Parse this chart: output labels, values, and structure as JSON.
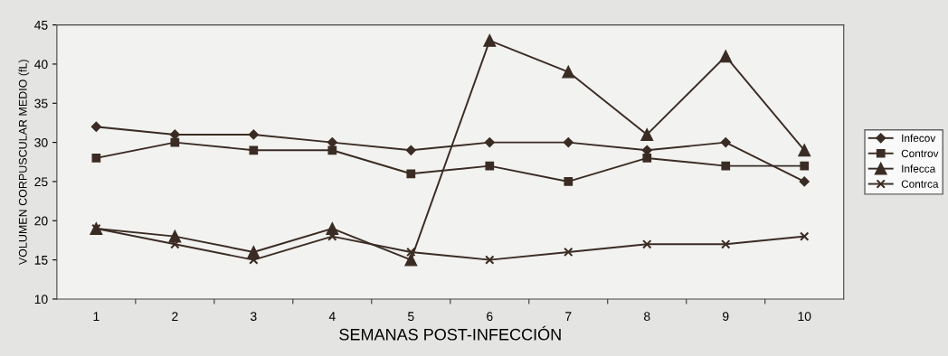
{
  "chart_data": {
    "type": "line",
    "xlabel": "SEMANAS POST-INFECCIÓN",
    "ylabel": "VOLUMEN CORPUSCULAR MEDIO (fL)",
    "categories": [
      "1",
      "2",
      "3",
      "4",
      "5",
      "6",
      "7",
      "8",
      "9",
      "10"
    ],
    "ylim": [
      10,
      45
    ],
    "yticks": [
      10,
      15,
      20,
      25,
      30,
      35,
      40,
      45
    ],
    "grid": false,
    "legend": "right",
    "line_style": "solid",
    "series": [
      {
        "name": "Infecov",
        "color": "#3a2c24",
        "marker": "diamond",
        "values": [
          32,
          31,
          31,
          30,
          29,
          30,
          30,
          29,
          30,
          25
        ]
      },
      {
        "name": "Controv",
        "color": "#3a2c24",
        "marker": "square",
        "values": [
          28,
          30,
          29,
          29,
          26,
          27,
          25,
          28,
          27,
          27
        ]
      },
      {
        "name": "Infecca",
        "color": "#3a2c24",
        "marker": "triangle",
        "values": [
          19,
          18,
          16,
          19,
          15,
          43,
          39,
          31,
          41,
          29
        ]
      },
      {
        "name": "Contrca",
        "color": "#3a2c24",
        "marker": "cross",
        "values": [
          19,
          17,
          15,
          18,
          16,
          15,
          16,
          17,
          17,
          18
        ]
      }
    ]
  }
}
